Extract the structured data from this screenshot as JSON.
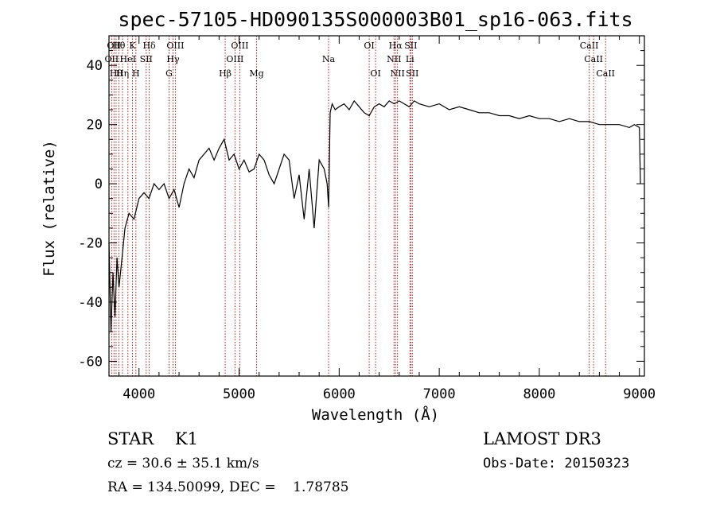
{
  "chart_data": {
    "type": "line",
    "title": "spec-57105-HD090135S000003B01_sp16-063.fits",
    "xlabel": "Wavelength (Å)",
    "ylabel": "Flux (relative)",
    "xlim": [
      3700,
      9050
    ],
    "ylim": [
      -65,
      50
    ],
    "x_ticks": [
      4000,
      5000,
      6000,
      7000,
      8000,
      9000
    ],
    "y_ticks": [
      -60,
      -40,
      -20,
      0,
      20,
      40
    ],
    "grid": false,
    "series": [
      {
        "x": [
          3700,
          3720,
          3740,
          3760,
          3780,
          3800,
          3830,
          3860,
          3900,
          3950,
          4000,
          4050,
          4100,
          4150,
          4200,
          4250,
          4300,
          4350,
          4400,
          4450,
          4500,
          4550,
          4600,
          4650,
          4700,
          4750,
          4800,
          4850,
          4900,
          4950,
          5000,
          5050,
          5100,
          5150,
          5200,
          5250,
          5300,
          5350,
          5400,
          5450,
          5500,
          5550,
          5600,
          5650,
          5700,
          5750,
          5800,
          5850,
          5880,
          5895,
          5910,
          5930,
          5960,
          6000,
          6050,
          6100,
          6150,
          6200,
          6250,
          6300,
          6350,
          6400,
          6450,
          6500,
          6550,
          6600,
          6650,
          6700,
          6750,
          6800,
          6900,
          7000,
          7100,
          7200,
          7300,
          7400,
          7500,
          7600,
          7700,
          7800,
          7900,
          8000,
          8100,
          8200,
          8300,
          8400,
          8500,
          8600,
          8700,
          8800,
          8900,
          8950,
          9000,
          9010
        ],
        "y": [
          -20,
          -50,
          -30,
          -45,
          -25,
          -35,
          -25,
          -15,
          -10,
          -12,
          -5,
          -3,
          -5,
          0,
          -2,
          0,
          -5,
          -2,
          -8,
          0,
          5,
          2,
          8,
          10,
          12,
          8,
          12,
          15,
          8,
          10,
          5,
          8,
          4,
          5,
          10,
          8,
          3,
          0,
          5,
          10,
          8,
          -5,
          3,
          -12,
          5,
          -15,
          8,
          5,
          0,
          -8,
          24,
          27,
          25,
          26,
          27,
          25,
          28,
          26,
          24,
          23,
          26,
          27,
          26,
          28,
          27,
          28,
          27,
          26,
          28,
          27,
          26,
          27,
          25,
          26,
          25,
          24,
          24,
          23,
          23,
          22,
          23,
          22,
          22,
          21,
          22,
          21,
          21,
          20,
          20,
          20,
          19,
          20,
          19,
          0
        ]
      }
    ],
    "lines": [
      {
        "x": 3727,
        "row": 2,
        "label": "OII"
      },
      {
        "x": 3750,
        "row": 1,
        "label": "OII"
      },
      {
        "x": 3771,
        "row": 3,
        "label": "Hθ"
      },
      {
        "x": 3798,
        "row": 1,
        "label": "Hθ"
      },
      {
        "x": 3835,
        "row": 3,
        "label": "Hη"
      },
      {
        "x": 3889,
        "row": 2,
        "label": "HeI"
      },
      {
        "x": 3934,
        "row": 1,
        "label": "K"
      },
      {
        "x": 3969,
        "row": 3,
        "label": "H"
      },
      {
        "x": 4072,
        "row": 2,
        "label": "SII"
      },
      {
        "x": 4102,
        "row": 1,
        "label": "Hδ"
      },
      {
        "x": 4300,
        "row": 3,
        "label": "G"
      },
      {
        "x": 4340,
        "row": 2,
        "label": "Hγ"
      },
      {
        "x": 4363,
        "row": 1,
        "label": "OIII"
      },
      {
        "x": 4861,
        "row": 3,
        "label": "Hβ"
      },
      {
        "x": 4959,
        "row": 2,
        "label": "OIII"
      },
      {
        "x": 5007,
        "row": 1,
        "label": "OIII"
      },
      {
        "x": 5175,
        "row": 3,
        "label": "Mg"
      },
      {
        "x": 5894,
        "row": 2,
        "label": "Na"
      },
      {
        "x": 6300,
        "row": 1,
        "label": "OI"
      },
      {
        "x": 6364,
        "row": 3,
        "label": "OI"
      },
      {
        "x": 6548,
        "row": 2,
        "label": "NII"
      },
      {
        "x": 6563,
        "row": 1,
        "label": "Hα"
      },
      {
        "x": 6583,
        "row": 3,
        "label": "NII"
      },
      {
        "x": 6707,
        "row": 2,
        "label": "Li"
      },
      {
        "x": 6716,
        "row": 1,
        "label": "SII"
      },
      {
        "x": 6731,
        "row": 3,
        "label": "SII"
      },
      {
        "x": 8498,
        "row": 1,
        "label": "CaII"
      },
      {
        "x": 8542,
        "row": 2,
        "label": "CaII"
      },
      {
        "x": 8662,
        "row": 3,
        "label": "CaII"
      }
    ]
  },
  "info": {
    "class": "STAR    K1",
    "survey": "LAMOST DR3",
    "cz": "cz = 30.6 ± 35.1 km/s",
    "obs_date": "Obs-Date: 20150323",
    "coords": "RA = 134.50099, DEC =    1.78785"
  },
  "colors": {
    "spectrum": "#000000",
    "line_markers": "#b00000",
    "axes": "#000000"
  }
}
